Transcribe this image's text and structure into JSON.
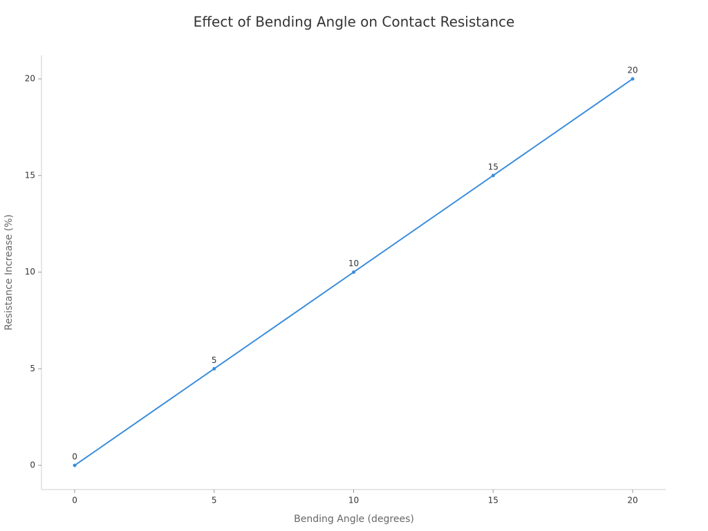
{
  "chart_data": {
    "type": "line",
    "title": "Effect of Bending Angle on Contact Resistance",
    "x_label": "Bending Angle (degrees)",
    "y_label": "Resistance Increase (%)",
    "x": [
      0,
      5,
      10,
      15,
      20
    ],
    "series": [
      {
        "name": "Resistance Increase",
        "color": "#3a8ddb",
        "values": [
          0,
          5,
          10,
          15,
          20
        ]
      }
    ],
    "xlim": [
      -1.19,
      21.19
    ],
    "xticks": [
      0,
      5,
      10,
      15,
      20
    ],
    "ylim": [
      -1.25,
      21.22
    ],
    "yticks": [
      0,
      5,
      10,
      15,
      20
    ],
    "grid": false
  }
}
